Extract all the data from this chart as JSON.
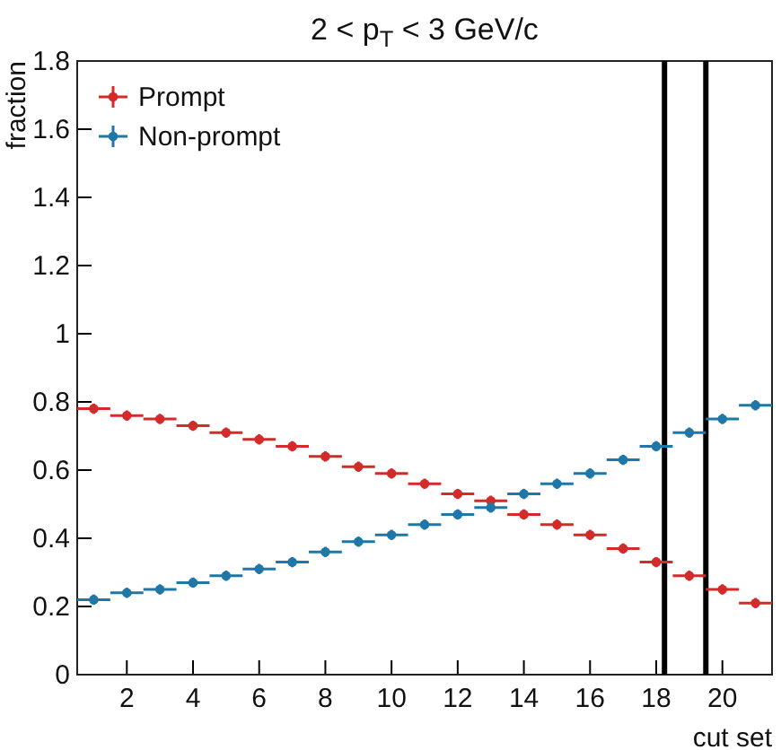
{
  "chart_data": {
    "type": "scatter",
    "title": "2 < p$_{T}$ < 3  GeV/c",
    "xlabel": "cut set",
    "ylabel": "fraction",
    "x": [
      1,
      2,
      3,
      4,
      5,
      6,
      7,
      8,
      9,
      10,
      11,
      12,
      13,
      14,
      15,
      16,
      17,
      18,
      19,
      20,
      21
    ],
    "series": [
      {
        "name": "Prompt",
        "color": "#d42a2a",
        "values": [
          0.78,
          0.76,
          0.75,
          0.73,
          0.71,
          0.69,
          0.67,
          0.64,
          0.61,
          0.59,
          0.56,
          0.53,
          0.51,
          0.47,
          0.44,
          0.41,
          0.37,
          0.33,
          0.29,
          0.25,
          0.21
        ],
        "errors": [
          0.015,
          0.015,
          0.015,
          0.015,
          0.015,
          0.015,
          0.015,
          0.015,
          0.015,
          0.015,
          0.015,
          0.015,
          0.015,
          0.015,
          0.015,
          0.015,
          0.015,
          0.015,
          0.015,
          0.015,
          0.015
        ],
        "xerrors": [
          0.5,
          0.5,
          0.5,
          0.5,
          0.5,
          0.5,
          0.5,
          0.5,
          0.5,
          0.5,
          0.5,
          0.5,
          0.5,
          0.5,
          0.5,
          0.5,
          0.5,
          0.5,
          0.5,
          0.5,
          0.5
        ]
      },
      {
        "name": "Non-prompt",
        "color": "#1f77a8",
        "values": [
          0.22,
          0.24,
          0.25,
          0.27,
          0.29,
          0.31,
          0.33,
          0.36,
          0.39,
          0.41,
          0.44,
          0.47,
          0.49,
          0.53,
          0.56,
          0.59,
          0.63,
          0.67,
          0.71,
          0.75,
          0.79
        ],
        "errors": [
          0.015,
          0.015,
          0.015,
          0.015,
          0.015,
          0.015,
          0.015,
          0.015,
          0.015,
          0.015,
          0.015,
          0.015,
          0.015,
          0.015,
          0.015,
          0.015,
          0.015,
          0.015,
          0.015,
          0.015,
          0.015
        ],
        "xerrors": [
          0.5,
          0.5,
          0.5,
          0.5,
          0.5,
          0.5,
          0.5,
          0.5,
          0.5,
          0.5,
          0.5,
          0.5,
          0.5,
          0.5,
          0.5,
          0.5,
          0.5,
          0.5,
          0.5,
          0.5,
          0.5
        ]
      }
    ],
    "xlim": [
      0.5,
      21.5
    ],
    "xticks": [
      2,
      4,
      6,
      8,
      10,
      12,
      14,
      16,
      18,
      20
    ],
    "ylim": [
      0,
      1.8
    ],
    "yticks": [
      0,
      0.2,
      0.4,
      0.6,
      0.8,
      1,
      1.2,
      1.4,
      1.6,
      1.8
    ],
    "ref_lines": [
      {
        "axis": "x",
        "value": 18.25,
        "color": "#000000"
      },
      {
        "axis": "x",
        "value": 19.5,
        "color": "#000000"
      }
    ],
    "legend": "top left",
    "marker": "circle",
    "grid": false
  }
}
